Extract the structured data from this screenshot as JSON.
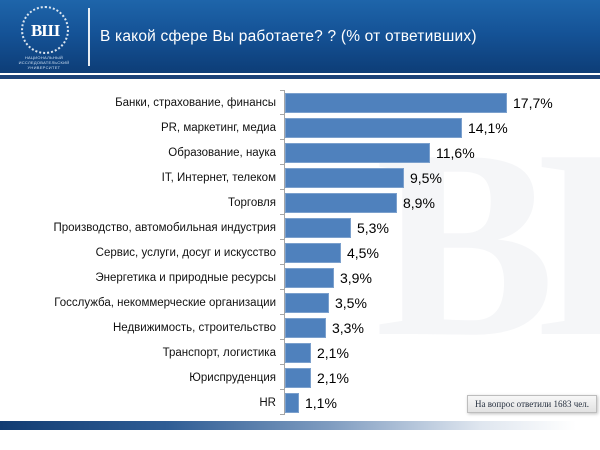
{
  "header": {
    "title": "В какой сфере Вы работаете? ? (% от ответивших)",
    "logo": {
      "monogram": "ВШ",
      "subtext_line1": "НАЦИОНАЛЬНЫЙ ИССЛЕДОВАТЕЛЬСКИЙ",
      "subtext_line2": "УНИВЕРСИТЕТ"
    }
  },
  "chart_data": {
    "type": "bar",
    "orientation": "horizontal",
    "title": "В какой сфере Вы работаете? (% от ответивших)",
    "categories": [
      "Банки, страхование, финансы",
      "PR, маркетинг, медиа",
      "Образование, наука",
      "IT, Интернет, телеком",
      "Торговля",
      "Производство, автомобильная индустрия",
      "Сервис, услуги, досуг и искусство",
      "Энергетика и природные ресурсы",
      "Госслужба, некоммерческие организации",
      "Недвижимость, строительство",
      "Транспорт, логистика",
      "Юриспруденция",
      "HR"
    ],
    "values": [
      17.7,
      14.1,
      11.6,
      9.5,
      8.9,
      5.3,
      4.5,
      3.9,
      3.5,
      3.3,
      2.1,
      2.1,
      1.1
    ],
    "value_labels": [
      "17,7%",
      "14,1%",
      "11,6%",
      "9,5%",
      "8,9%",
      "5,3%",
      "4,5%",
      "3,9%",
      "3,5%",
      "3,3%",
      "2,1%",
      "2,1%",
      "1,1%"
    ],
    "bar_color": "#4f81bd",
    "xlim": [
      0,
      18
    ],
    "grid": false,
    "legend": false
  },
  "annotation": {
    "text": "На вопрос ответили 1683 чел."
  }
}
